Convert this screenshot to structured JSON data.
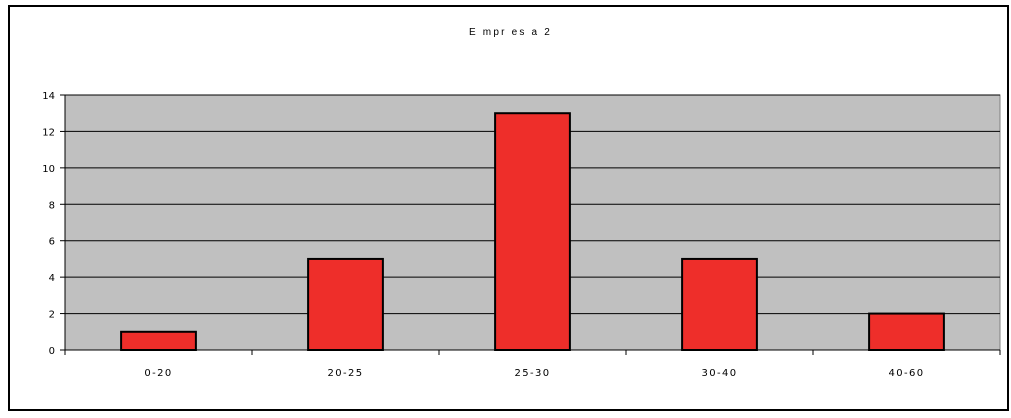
{
  "chart_data": {
    "type": "bar",
    "title": "E mpr es a 2",
    "xlabel": "",
    "ylabel": "",
    "categories": [
      "0-20",
      "20-25",
      "25-30",
      "30-40",
      "40-60"
    ],
    "values": [
      1,
      5,
      13,
      5,
      2
    ],
    "ylim": [
      0,
      14
    ],
    "yticks": [
      "0",
      "2",
      "4",
      "6",
      "8",
      "10",
      "12",
      "14"
    ],
    "grid": true,
    "legend": "none",
    "colors": {
      "bar_fill": "#ee2e2a",
      "bar_stroke": "#000000",
      "plot_background": "#c0c0c0",
      "gridline": "#000000"
    }
  }
}
